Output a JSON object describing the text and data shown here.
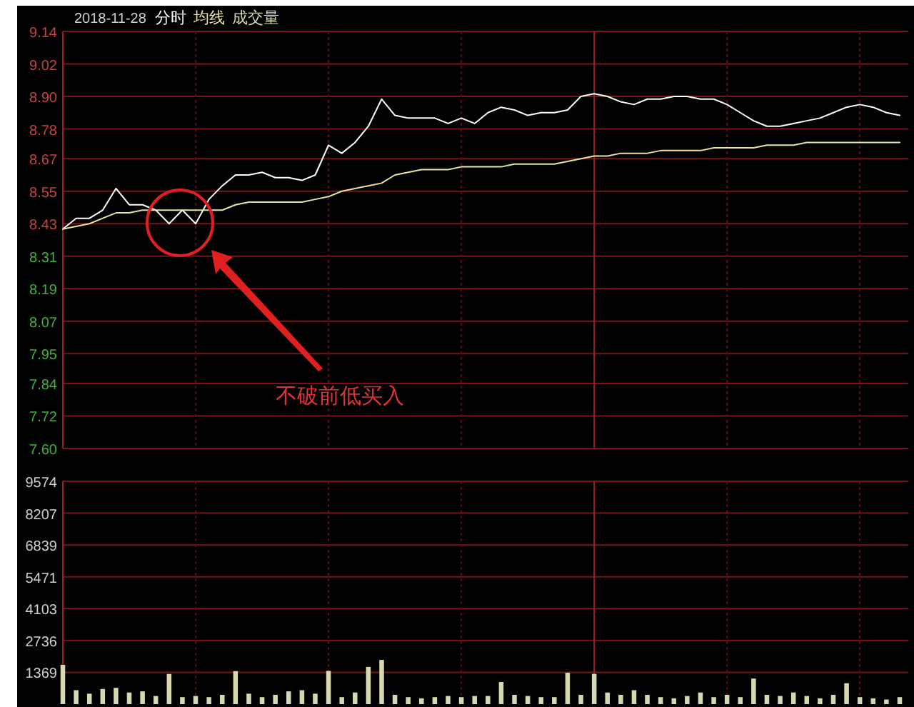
{
  "chart_data": [
    {
      "type": "line",
      "title": "2018-11-28",
      "categories": [
        null,
        null,
        null,
        null,
        null,
        null,
        null,
        null,
        null,
        null,
        null,
        null,
        null,
        null,
        null,
        null,
        null,
        null,
        null,
        null,
        null,
        null,
        null,
        null,
        null,
        null,
        null,
        null,
        null,
        null,
        null,
        null,
        null,
        null,
        null,
        null,
        null,
        null,
        null,
        null,
        null,
        null,
        null,
        null,
        null,
        null,
        null,
        null,
        null,
        null,
        null,
        null,
        null,
        null,
        null,
        null,
        null,
        null,
        null,
        null,
        null,
        null,
        null,
        null
      ],
      "series": [
        {
          "name": "分时",
          "color": "#ffffff",
          "values": [
            8.41,
            8.45,
            8.45,
            8.48,
            8.56,
            8.5,
            8.5,
            8.48,
            8.43,
            8.48,
            8.43,
            8.52,
            8.57,
            8.61,
            8.61,
            8.62,
            8.6,
            8.6,
            8.59,
            8.61,
            8.72,
            8.69,
            8.73,
            8.79,
            8.89,
            8.83,
            8.82,
            8.82,
            8.82,
            8.8,
            8.82,
            8.8,
            8.84,
            8.86,
            8.85,
            8.83,
            8.84,
            8.84,
            8.85,
            8.9,
            8.91,
            8.9,
            8.88,
            8.87,
            8.89,
            8.89,
            8.9,
            8.9,
            8.89,
            8.89,
            8.87,
            8.84,
            8.81,
            8.79,
            8.79,
            8.8,
            8.81,
            8.82,
            8.84,
            8.86,
            8.87,
            8.86,
            8.84,
            8.83
          ]
        },
        {
          "name": "均线",
          "color": "#e8e4a0",
          "values": [
            8.41,
            8.42,
            8.43,
            8.45,
            8.47,
            8.47,
            8.48,
            8.48,
            8.48,
            8.48,
            8.48,
            8.48,
            8.48,
            8.5,
            8.51,
            8.51,
            8.51,
            8.51,
            8.51,
            8.52,
            8.53,
            8.55,
            8.56,
            8.57,
            8.58,
            8.61,
            8.62,
            8.63,
            8.63,
            8.63,
            8.64,
            8.64,
            8.64,
            8.64,
            8.65,
            8.65,
            8.65,
            8.65,
            8.66,
            8.67,
            8.68,
            8.68,
            8.69,
            8.69,
            8.69,
            8.7,
            8.7,
            8.7,
            8.7,
            8.71,
            8.71,
            8.71,
            8.71,
            8.72,
            8.72,
            8.72,
            8.73,
            8.73,
            8.73,
            8.73,
            8.73,
            8.73,
            8.73,
            8.73
          ]
        }
      ],
      "ylim": [
        7.6,
        9.14
      ],
      "yticks": [
        {
          "value": 7.6,
          "label": "7.60"
        },
        7.72,
        7.84,
        7.95,
        8.07,
        8.19,
        8.31,
        8.43,
        8.55,
        8.67,
        8.78,
        {
          "value": 8.9,
          "label": "8.90"
        },
        9.02,
        9.14
      ],
      "grid": true,
      "legend": "top left",
      "tick_labels": "y",
      "annotations": [
        "不破前低买入"
      ]
    },
    {
      "type": "bar",
      "categories": [
        null,
        null,
        null,
        null,
        null,
        null,
        null,
        null,
        null,
        null,
        null,
        null,
        null,
        null,
        null,
        null,
        null,
        null,
        null,
        null,
        null,
        null,
        null,
        null,
        null,
        null,
        null,
        null,
        null,
        null,
        null,
        null,
        null,
        null,
        null,
        null,
        null,
        null,
        null,
        null,
        null,
        null,
        null,
        null,
        null,
        null,
        null,
        null,
        null,
        null,
        null,
        null,
        null,
        null,
        null,
        null,
        null,
        null,
        null,
        null,
        null,
        null,
        null,
        null
      ],
      "series": [
        {
          "name": "成交量",
          "color": "#d8d8b0",
          "values": [
            1690,
            600,
            450,
            650,
            700,
            500,
            550,
            350,
            1300,
            300,
            350,
            300,
            400,
            1420,
            450,
            300,
            400,
            550,
            600,
            450,
            1430,
            300,
            500,
            1600,
            1900,
            400,
            300,
            250,
            300,
            350,
            300,
            350,
            350,
            950,
            400,
            350,
            300,
            300,
            1350,
            400,
            1300,
            500,
            400,
            600,
            400,
            300,
            250,
            350,
            500,
            300,
            400,
            300,
            1100,
            400,
            350,
            500,
            350,
            250,
            400,
            900,
            300,
            250,
            200,
            300
          ]
        }
      ],
      "ylim": [
        0,
        9574
      ],
      "yticks": [
        1369,
        2736,
        4103,
        5471,
        6839,
        8207,
        9574
      ],
      "grid": true,
      "legend": "top left",
      "tick_labels": "y"
    }
  ]
}
